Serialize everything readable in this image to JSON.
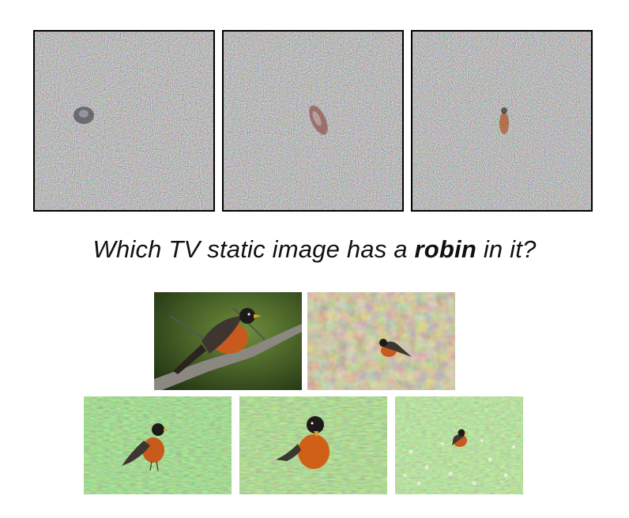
{
  "noise_panels": [
    {
      "hidden_object": "robin-like blob"
    },
    {
      "hidden_object": "robin-like blob"
    },
    {
      "hidden_object": "robin-like blob"
    }
  ],
  "question": {
    "prefix": "Which TV static image has a ",
    "emphasis": "robin",
    "suffix": " in it?"
  },
  "colors": {
    "robin_breast": "#c75a1c",
    "robin_back": "#3d3630",
    "grass": "#5d8f3a",
    "leaf_litter": "#8c7a52",
    "static_base": "#8a8a7c"
  }
}
